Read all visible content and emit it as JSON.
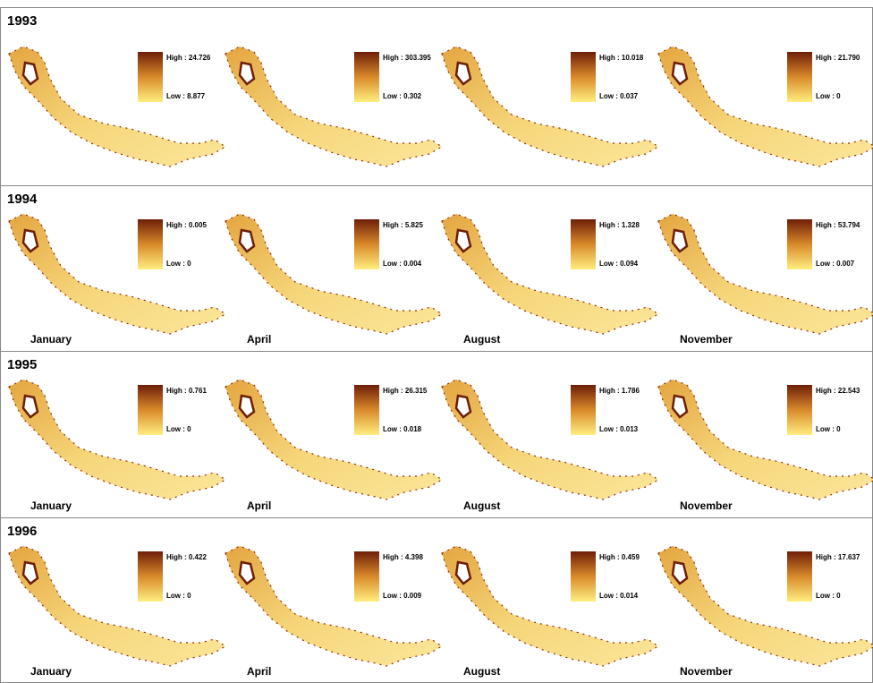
{
  "rows": [
    {
      "year": "1993",
      "panels": [
        {
          "high": "High : 24.726",
          "low": "Low : 8.877"
        },
        {
          "high": "High : 303.395",
          "low": "Low : 0.302"
        },
        {
          "high": "High : 10.018",
          "low": "Low : 0.037"
        },
        {
          "high": "High : 21.790",
          "low": "Low : 0"
        }
      ]
    },
    {
      "year": "1994",
      "panels": [
        {
          "month": "January",
          "high": "High : 0.005",
          "low": "Low : 0"
        },
        {
          "month": "April",
          "high": "High : 5.825",
          "low": "Low : 0.004"
        },
        {
          "month": "August",
          "high": "High : 1.328",
          "low": "Low : 0.094"
        },
        {
          "month": "November",
          "high": "High : 53.794",
          "low": "Low : 0.007"
        }
      ]
    },
    {
      "year": "1995",
      "panels": [
        {
          "month": "January",
          "high": "High : 0.761",
          "low": "Low : 0"
        },
        {
          "month": "April",
          "high": "High : 26.315",
          "low": "Low : 0.018"
        },
        {
          "month": "August",
          "high": "High : 1.786",
          "low": "Low : 0.013"
        },
        {
          "month": "November",
          "high": "High : 22.543",
          "low": "Low : 0"
        }
      ]
    },
    {
      "year": "1996",
      "panels": [
        {
          "month": "January",
          "high": "High : 0.422",
          "low": "Low : 0"
        },
        {
          "month": "April",
          "high": "High : 4.398",
          "low": "Low : 0.009"
        },
        {
          "month": "August",
          "high": "High : 0.459",
          "low": "Low : 0.014"
        },
        {
          "month": "November",
          "high": "High : 17.637",
          "low": "Low : 0"
        }
      ]
    }
  ]
}
